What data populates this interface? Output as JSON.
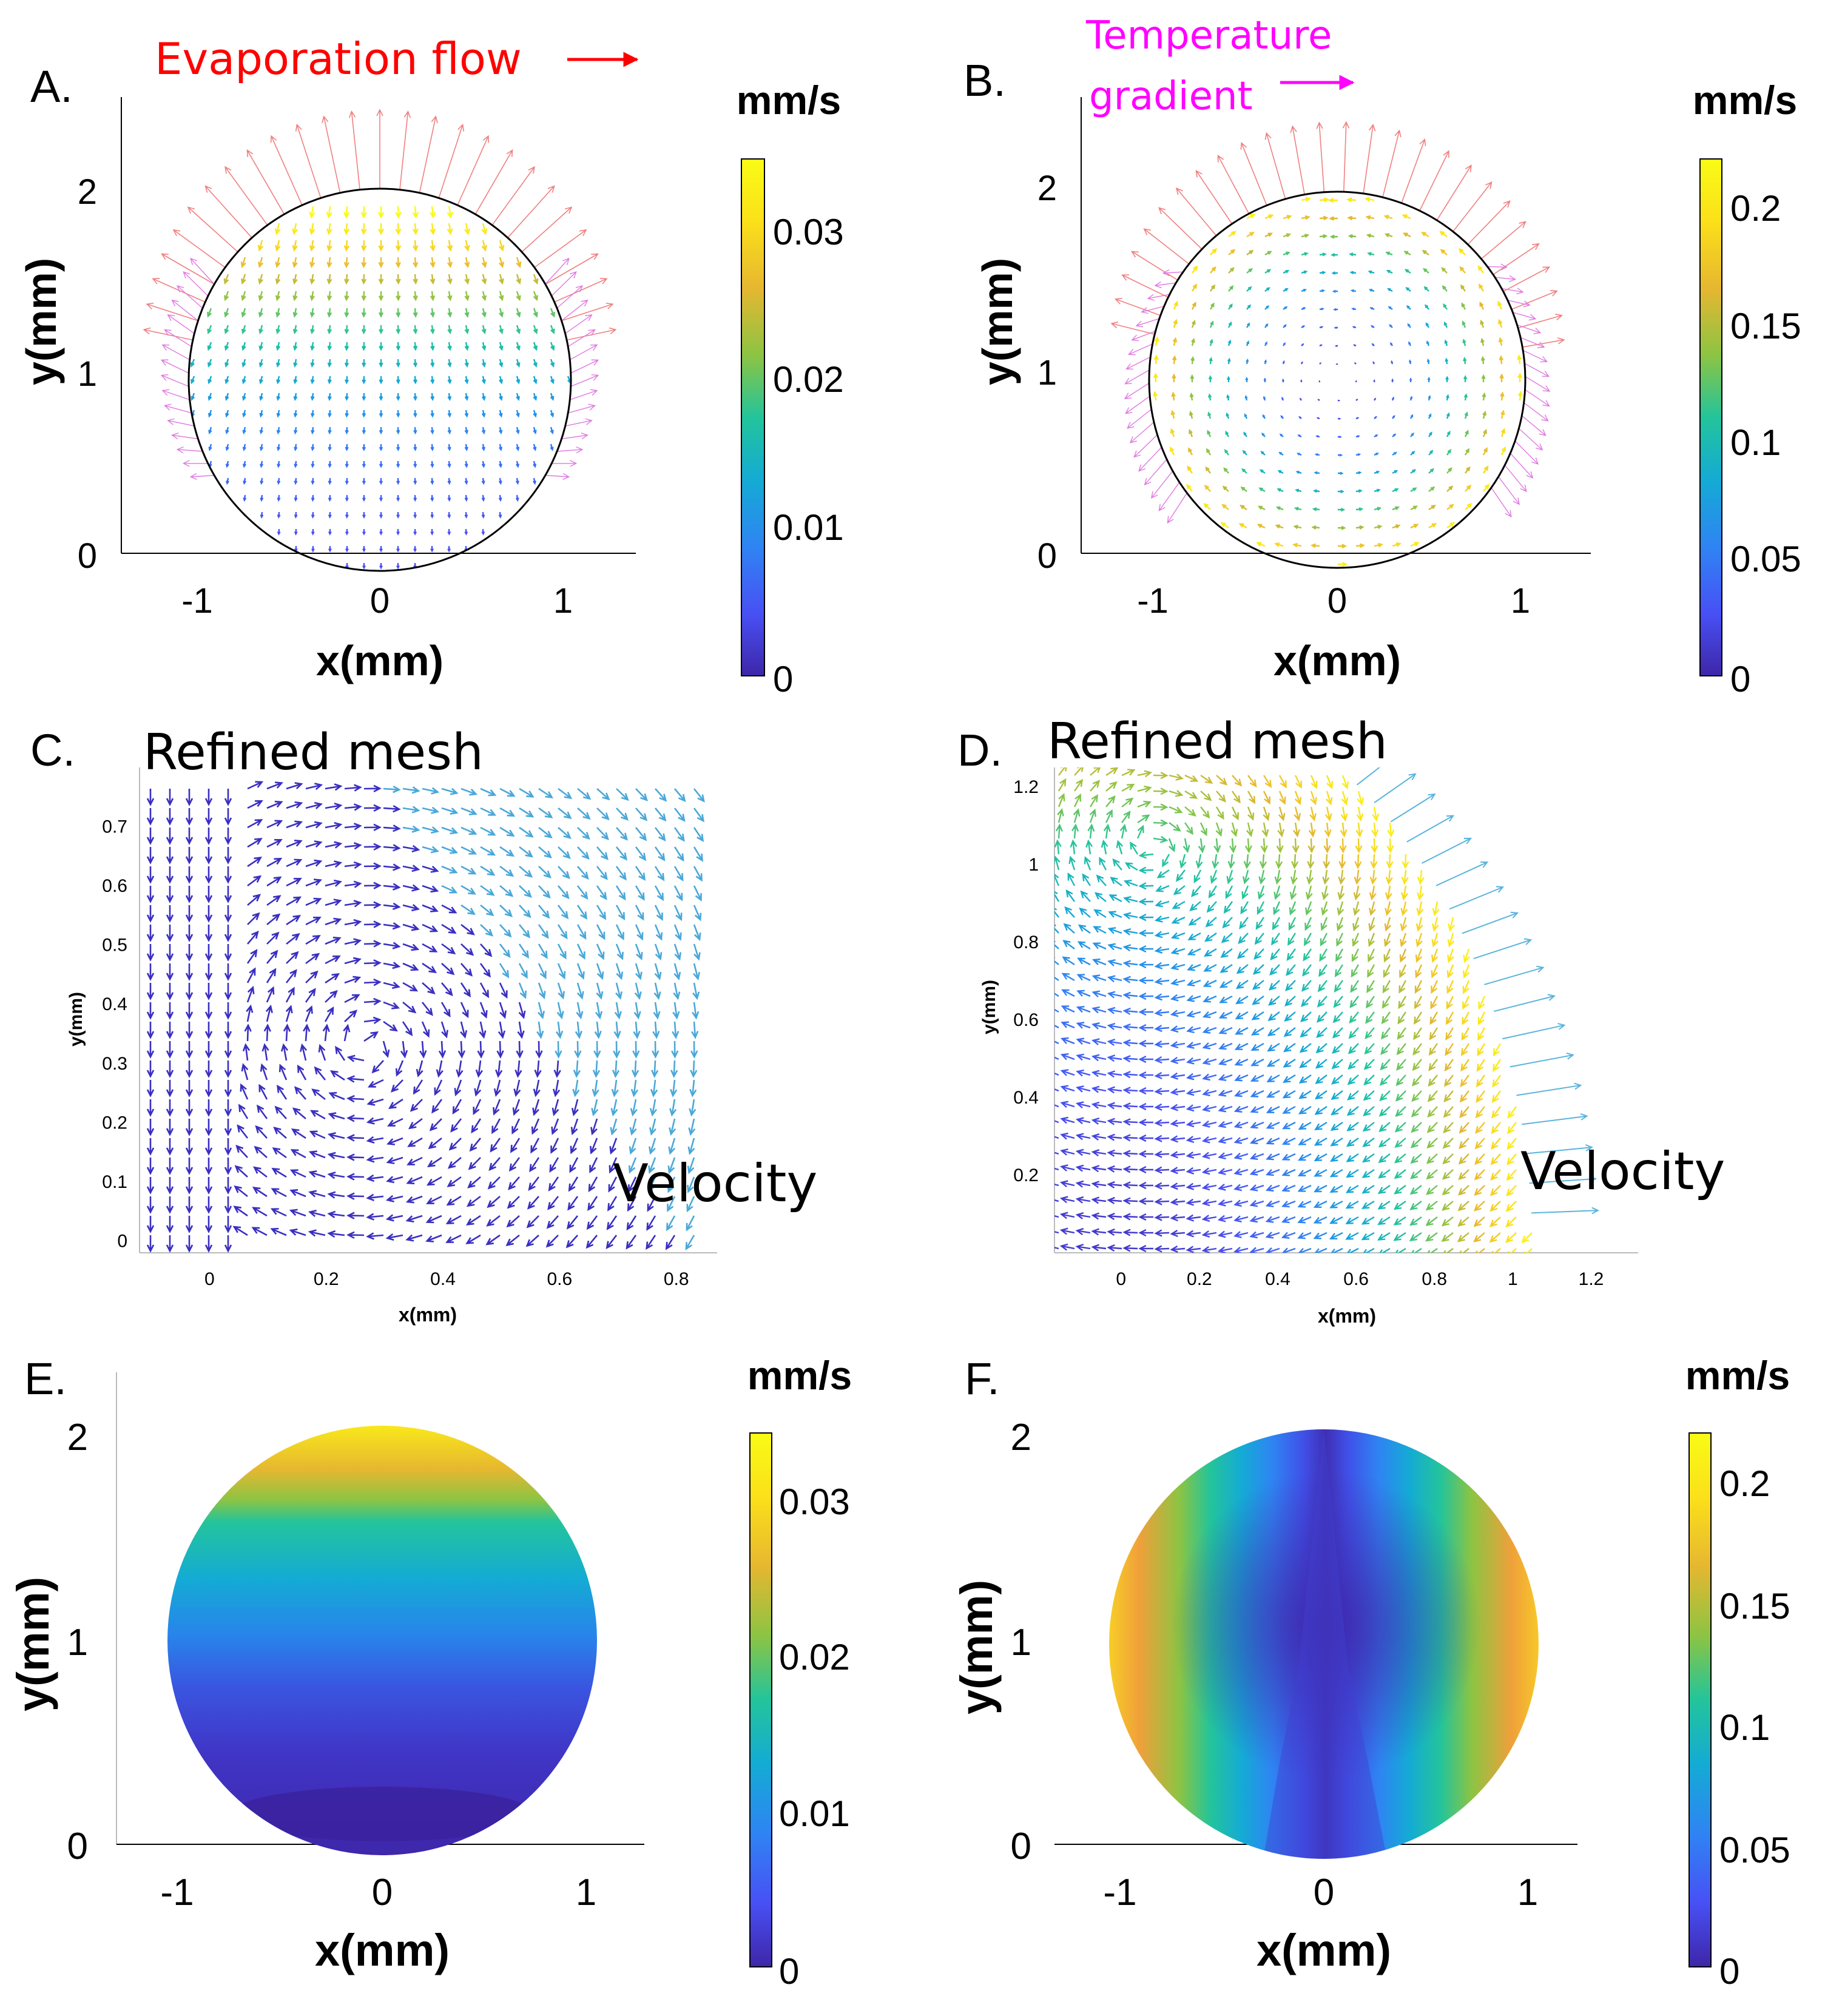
{
  "panels": [
    {
      "label": "A.",
      "annotation": "Evaporation flow",
      "colorbar_unit": "mm/s",
      "xlabel": "x(mm)",
      "ylabel": "y(mm)",
      "xticks": [
        "-1",
        "0",
        "1"
      ],
      "yticks": [
        "0",
        "1",
        "2"
      ],
      "cbar_ticks": [
        "0",
        "0.01",
        "0.02",
        "0.03"
      ]
    },
    {
      "label": "B.",
      "annotation": "Temperature gradient",
      "colorbar_unit": "mm/s",
      "xlabel": "x(mm)",
      "ylabel": "y(mm)",
      "xticks": [
        "-1",
        "0",
        "1"
      ],
      "yticks": [
        "0",
        "1",
        "2"
      ],
      "cbar_ticks": [
        "0",
        "0.05",
        "0.1",
        "0.15",
        "0.2"
      ]
    },
    {
      "label": "C.",
      "annotation": "Refined mesh",
      "annotation2": "Velocity",
      "xlabel": "x(mm)",
      "ylabel": "y(mm)",
      "xticks": [
        "0",
        "0.2",
        "0.4",
        "0.6",
        "0.8"
      ],
      "yticks": [
        "0",
        "0.1",
        "0.2",
        "0.3",
        "0.4",
        "0.5",
        "0.6",
        "0.7"
      ]
    },
    {
      "label": "D.",
      "annotation": "Refined mesh",
      "annotation2": "Velocity",
      "xlabel": "x(mm)",
      "ylabel": "y(mm)",
      "xticks": [
        "0",
        "0.2",
        "0.4",
        "0.6",
        "0.8",
        "1",
        "1.2"
      ],
      "yticks": [
        "0.2",
        "0.4",
        "0.6",
        "0.8",
        "1",
        "1.2"
      ]
    },
    {
      "label": "E.",
      "colorbar_unit": "mm/s",
      "xlabel": "x(mm)",
      "ylabel": "y(mm)",
      "xticks": [
        "-1",
        "0",
        "1"
      ],
      "yticks": [
        "0",
        "1",
        "2"
      ],
      "cbar_ticks": [
        "0",
        "0.01",
        "0.02",
        "0.03"
      ]
    },
    {
      "label": "F.",
      "colorbar_unit": "mm/s",
      "xlabel": "x(mm)",
      "ylabel": "y(mm)",
      "xticks": [
        "-1",
        "0",
        "1"
      ],
      "yticks": [
        "0",
        "1",
        "2"
      ],
      "cbar_ticks": [
        "0",
        "0.05",
        "0.1",
        "0.15",
        "0.2"
      ]
    }
  ],
  "colors": {
    "evaporation_annotation": "#ff0000",
    "temperature_annotation": "#ff00ff",
    "droplet_outline": "#000000",
    "colormap": [
      "#3e26a8",
      "#4850f5",
      "#2f84f3",
      "#14abd4",
      "#23c49b",
      "#8cc443",
      "#e6b730",
      "#fbe01a",
      "#f9fb15"
    ]
  },
  "chart_data": [
    {
      "panel": "A",
      "type": "quiver",
      "title": "",
      "xlabel": "x(mm)",
      "ylabel": "y(mm)",
      "xlim": [
        -1.4,
        1.4
      ],
      "ylim": [
        0,
        2.5
      ],
      "colorbar_range": [
        0,
        0.035
      ],
      "colorbar_unit": "mm/s",
      "droplet": {
        "center": [
          0,
          1.0
        ],
        "radius": 1.05
      }
    },
    {
      "panel": "B",
      "type": "quiver",
      "title": "",
      "xlabel": "x(mm)",
      "ylabel": "y(mm)",
      "xlim": [
        -1.4,
        1.4
      ],
      "ylim": [
        0,
        2.5
      ],
      "colorbar_range": [
        0,
        0.22
      ],
      "colorbar_unit": "mm/s",
      "droplet": {
        "center": [
          0,
          1.0
        ],
        "radius": 1.02
      }
    },
    {
      "panel": "C",
      "type": "quiver",
      "title": "",
      "xlabel": "x(mm)",
      "ylabel": "y(mm)",
      "xlim": [
        -0.12,
        0.87
      ],
      "ylim": [
        -0.02,
        0.8
      ],
      "vortex_center": [
        0.27,
        0.33
      ]
    },
    {
      "panel": "D",
      "type": "quiver",
      "title": "",
      "xlabel": "x(mm)",
      "ylabel": "y(mm)",
      "xlim": [
        -0.17,
        1.32
      ],
      "ylim": [
        0,
        1.25
      ],
      "vortex_center": [
        0.08,
        1.05
      ]
    },
    {
      "panel": "E",
      "type": "heatmap",
      "title": "",
      "xlabel": "x(mm)",
      "ylabel": "y(mm)",
      "xlim": [
        -1.3,
        1.3
      ],
      "ylim": [
        0,
        2.1
      ],
      "colorbar_range": [
        0,
        0.034
      ],
      "colorbar_unit": "mm/s",
      "droplet": {
        "center": [
          0,
          1.0
        ],
        "radius": 1.05
      }
    },
    {
      "panel": "F",
      "type": "heatmap",
      "title": "",
      "xlabel": "x(mm)",
      "ylabel": "y(mm)",
      "xlim": [
        -1.3,
        1.3
      ],
      "ylim": [
        0,
        2.1
      ],
      "colorbar_range": [
        0,
        0.22
      ],
      "colorbar_unit": "mm/s",
      "droplet": {
        "center": [
          0,
          1.0
        ],
        "radius": 1.05
      }
    }
  ]
}
